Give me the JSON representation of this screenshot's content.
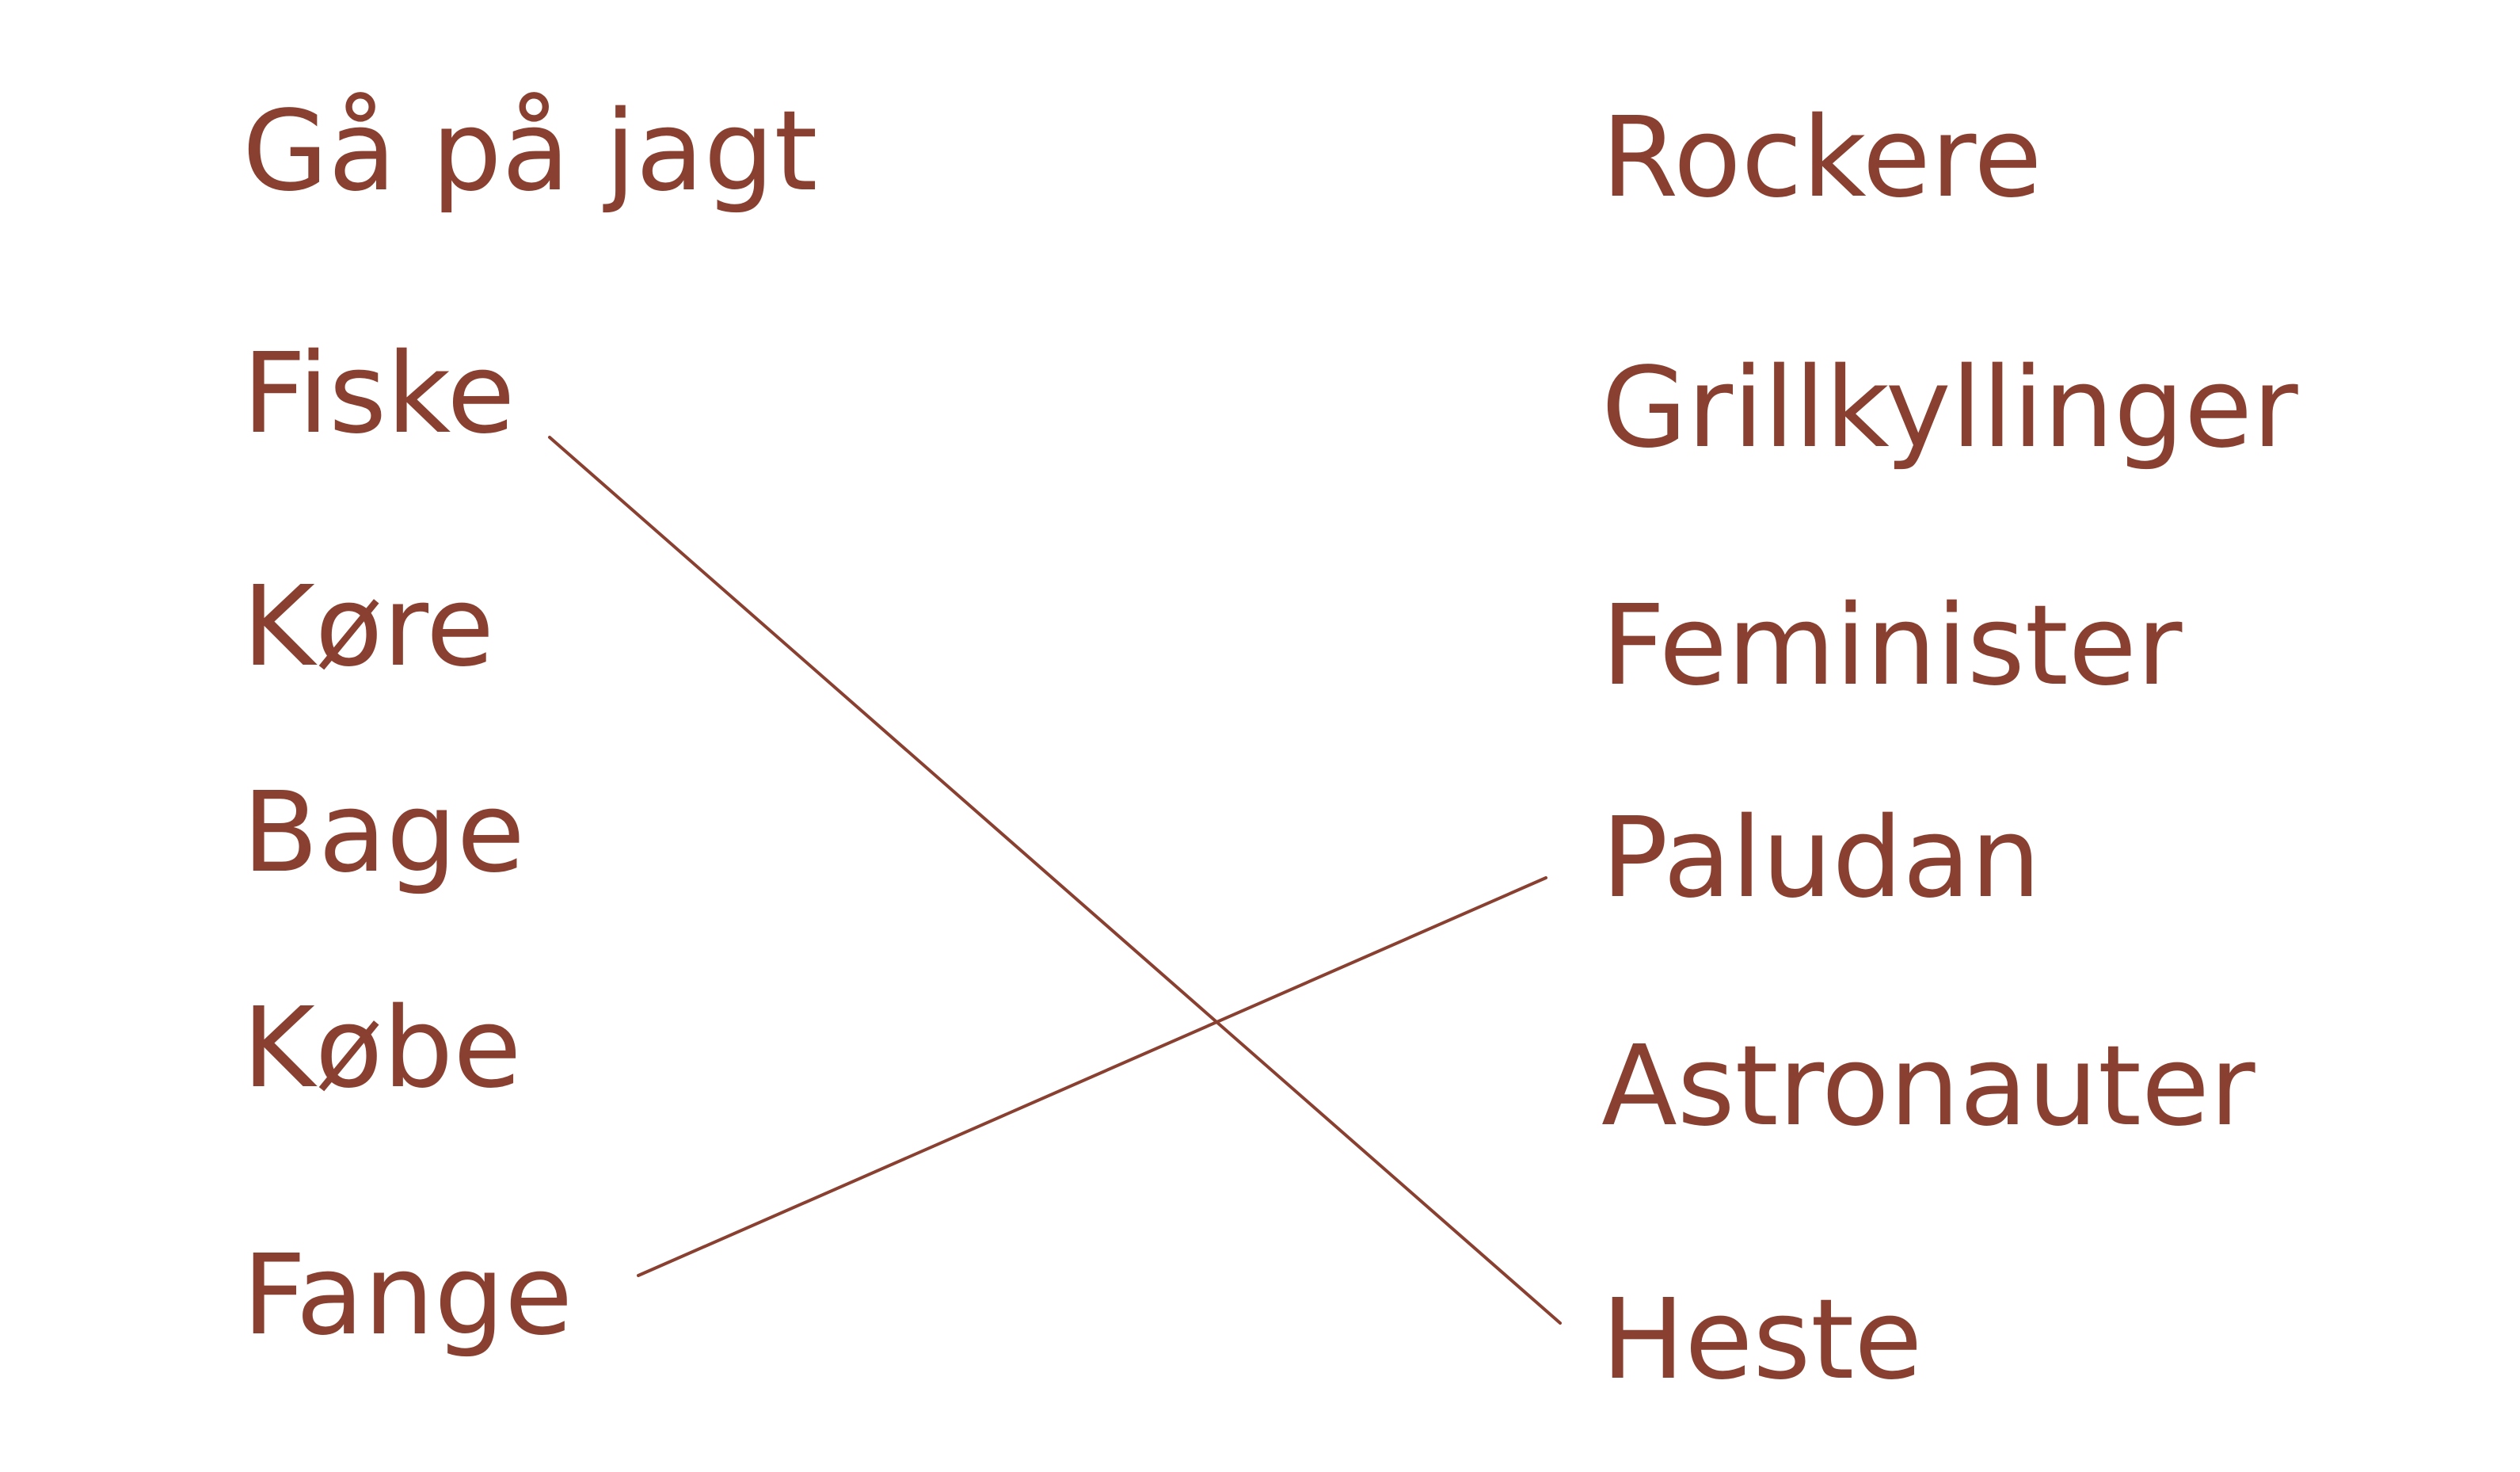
{
  "colors": {
    "text": "#8a4030",
    "line": "#8a4030",
    "background": "#ffffff"
  },
  "left_column": [
    "Gå på jagt",
    "Fiske",
    "Køre",
    "Bage",
    "Købe",
    "Fange"
  ],
  "right_column": [
    "Rockere",
    "Grillkyllinger",
    "Feminister",
    "Paludan",
    "Astronauter",
    "Heste"
  ],
  "connections": [
    {
      "left": "Fiske",
      "right": "Heste"
    },
    {
      "left": "Fange",
      "right": "Paludan"
    }
  ]
}
